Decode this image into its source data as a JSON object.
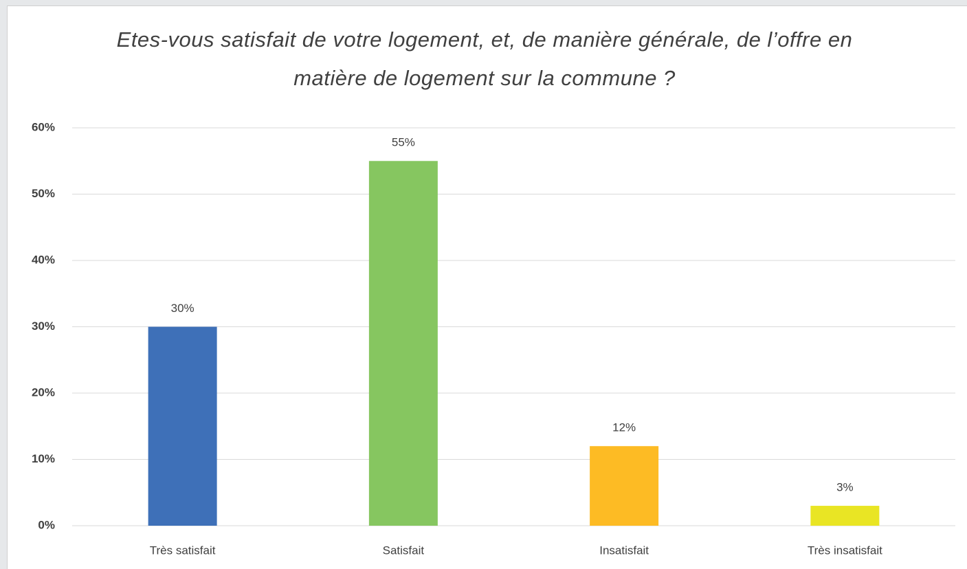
{
  "chart_data": {
    "type": "bar",
    "title": "Etes-vous satisfait de votre logement, et, de manière générale, de l’offre en matière de logement sur la commune ?",
    "categories": [
      "Très satisfait",
      "Satisfait",
      "Insatisfait",
      "Très insatisfait"
    ],
    "values": [
      30,
      55,
      12,
      3
    ],
    "value_labels": [
      "30%",
      "55%",
      "12%",
      "3%"
    ],
    "colors": [
      "#3e70b8",
      "#86c660",
      "#fdbb24",
      "#e9e524"
    ],
    "ylim": [
      0,
      60
    ],
    "yticks": [
      {
        "value": 0,
        "label": "0%"
      },
      {
        "value": 10,
        "label": "10%"
      },
      {
        "value": 20,
        "label": "20%"
      },
      {
        "value": 30,
        "label": "30%"
      },
      {
        "value": 40,
        "label": "40%"
      },
      {
        "value": 50,
        "label": "50%"
      },
      {
        "value": 60,
        "label": "60%"
      }
    ],
    "grid": true
  }
}
